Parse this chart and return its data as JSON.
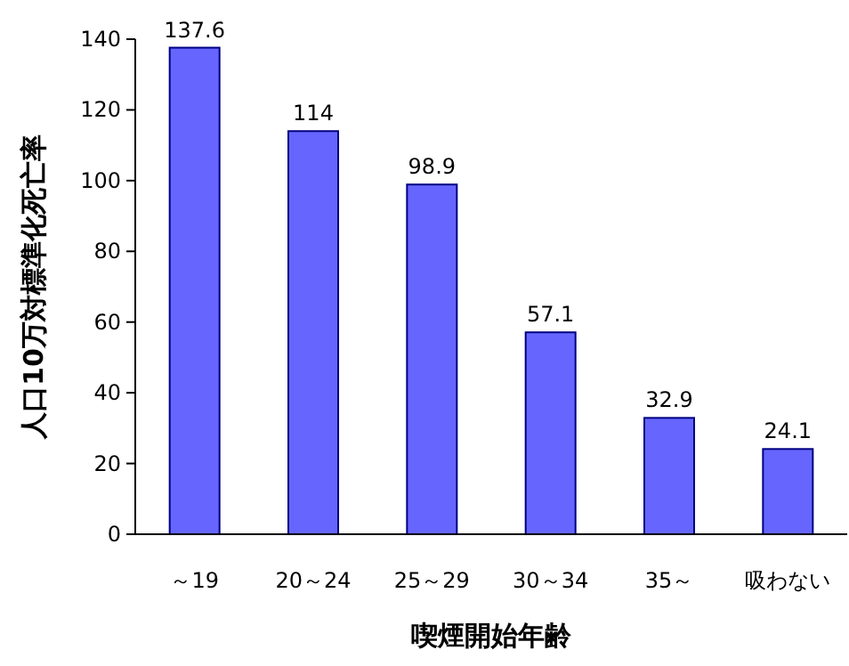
{
  "chart_data": {
    "type": "bar",
    "xlabel": "喫煙開始年齢",
    "ylabel": "人口10万対標準化死亡率",
    "categories": [
      "～19",
      "20～24",
      "25～29",
      "30～34",
      "35～",
      "吸わない"
    ],
    "values": [
      137.6,
      114,
      98.9,
      57.1,
      32.9,
      24.1
    ],
    "color": "#6666ff",
    "ylim": [
      0,
      140
    ],
    "yticks": [
      0,
      20,
      40,
      60,
      80,
      100,
      120,
      140
    ],
    "data_labels": true
  }
}
